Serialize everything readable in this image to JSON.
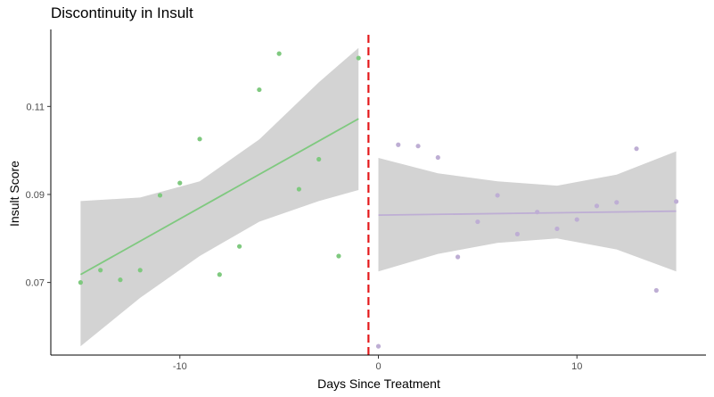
{
  "chart_data": {
    "type": "scatter",
    "title": "Discontinuity in Insult",
    "xlabel": "Days Since Treatment",
    "ylabel": "Insult Score",
    "xlim": [
      -16.5,
      16.5
    ],
    "ylim": [
      0.0535,
      0.1275
    ],
    "x_ticks": [
      -10,
      0,
      10
    ],
    "y_ticks": [
      0.07,
      0.09,
      0.11
    ],
    "y_tick_labels": [
      "0.07",
      "0.09",
      "0.11"
    ],
    "grid": false,
    "cutoff": -0.5,
    "cutoff_color": "#e41a1c",
    "band_color": "#d3d3d3",
    "series": [
      {
        "color": "#7fc97f",
        "x": [
          -15,
          -14,
          -13,
          -12,
          -11,
          -10,
          -9,
          -8,
          -7,
          -6,
          -5,
          -4,
          -3,
          -2,
          -1
        ],
        "y": [
          0.07,
          0.0728,
          0.0706,
          0.0728,
          0.0898,
          0.0926,
          0.1026,
          0.0718,
          0.0782,
          0.1138,
          0.122,
          0.0912,
          0.098,
          0.076,
          0.121
        ],
        "fit": {
          "x": [
            -15,
            -1
          ],
          "y": [
            0.0718,
            0.1072
          ]
        },
        "band": {
          "x": [
            -15,
            -12,
            -9,
            -6,
            -3,
            -1
          ],
          "lower": [
            0.0555,
            0.0665,
            0.076,
            0.0838,
            0.0885,
            0.091
          ],
          "upper": [
            0.0885,
            0.0893,
            0.093,
            0.1025,
            0.1155,
            0.1233
          ]
        }
      },
      {
        "color": "#beaed4",
        "x": [
          0,
          1,
          2,
          3,
          4,
          5,
          6,
          7,
          8,
          9,
          10,
          11,
          12,
          13,
          14,
          15
        ],
        "y": [
          0.0555,
          0.1013,
          0.101,
          0.0984,
          0.0758,
          0.0838,
          0.0898,
          0.081,
          0.086,
          0.0822,
          0.0843,
          0.0874,
          0.0882,
          0.1004,
          0.0682,
          0.0884
        ],
        "fit": {
          "x": [
            0,
            15
          ],
          "y": [
            0.0853,
            0.0862
          ]
        },
        "band": {
          "x": [
            0,
            3,
            6,
            9,
            12,
            15
          ],
          "lower": [
            0.0725,
            0.0765,
            0.079,
            0.08,
            0.0775,
            0.0725
          ],
          "upper": [
            0.0983,
            0.0948,
            0.093,
            0.092,
            0.0945,
            0.0998
          ]
        }
      }
    ]
  }
}
